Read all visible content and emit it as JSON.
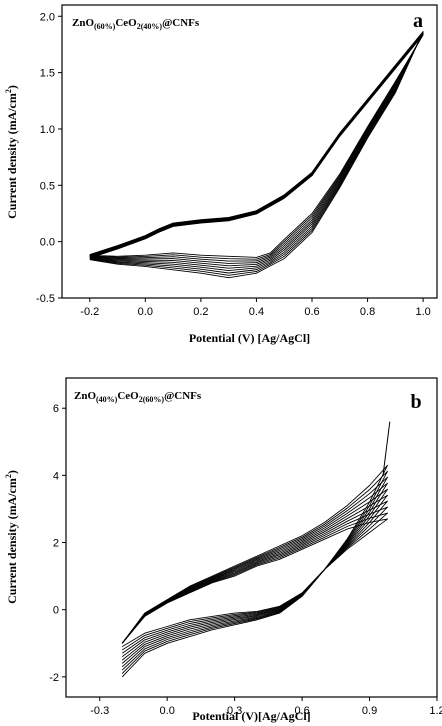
{
  "chart_data": [
    {
      "type": "line",
      "panel_letter": "a",
      "sample_label": {
        "parts": [
          {
            "t": "ZnO",
            "sub": false
          },
          {
            "t": "(60%)",
            "sub": true
          },
          {
            "t": "CeO",
            "sub": false
          },
          {
            "t": "2(40%)",
            "sub": true
          },
          {
            "t": "@CNFs",
            "sub": false
          }
        ]
      },
      "xlabel": "Potential (V) [Ag/AgCl]",
      "ylabel": "Current density (mA/cm",
      "ylabel_sup": "2",
      "ylabel_end": ")",
      "xlim": [
        -0.3,
        1.05
      ],
      "ylim": [
        -0.5,
        2.1
      ],
      "xticks": [
        -0.2,
        0.0,
        0.2,
        0.4,
        0.6,
        0.8,
        1.0
      ],
      "xtick_labels": [
        "-0.2",
        "0.0",
        "0.2",
        "0.4",
        "0.6",
        "0.8",
        "1.0"
      ],
      "yticks": [
        -0.5,
        0.0,
        0.5,
        1.0,
        1.5,
        2.0
      ],
      "ytick_labels": [
        "-0.5",
        "0.0",
        "0.5",
        "1.0",
        "1.5",
        "2.0"
      ],
      "series_count": 10,
      "anodic": [
        [
          -0.2,
          -0.13
        ],
        [
          -0.1,
          -0.05
        ],
        [
          0.0,
          0.04
        ],
        [
          0.05,
          0.1
        ],
        [
          0.1,
          0.15
        ],
        [
          0.2,
          0.18
        ],
        [
          0.3,
          0.2
        ],
        [
          0.4,
          0.26
        ],
        [
          0.5,
          0.4
        ],
        [
          0.6,
          0.6
        ],
        [
          0.7,
          0.95
        ],
        [
          0.8,
          1.25
        ],
        [
          0.9,
          1.55
        ],
        [
          1.0,
          1.85
        ]
      ],
      "cathodic_first": [
        [
          1.0,
          1.85
        ],
        [
          0.9,
          1.42
        ],
        [
          0.8,
          1.02
        ],
        [
          0.7,
          0.6
        ],
        [
          0.6,
          0.25
        ],
        [
          0.5,
          0.02
        ],
        [
          0.45,
          -0.1
        ],
        [
          0.4,
          -0.14
        ],
        [
          0.3,
          -0.13
        ],
        [
          0.2,
          -0.12
        ],
        [
          0.1,
          -0.1
        ],
        [
          0.0,
          -0.12
        ],
        [
          -0.1,
          -0.13
        ],
        [
          -0.2,
          -0.12
        ]
      ],
      "cathodic_last": [
        [
          1.0,
          1.72
        ],
        [
          0.9,
          1.32
        ],
        [
          0.8,
          0.92
        ],
        [
          0.7,
          0.48
        ],
        [
          0.6,
          0.08
        ],
        [
          0.5,
          -0.15
        ],
        [
          0.4,
          -0.28
        ],
        [
          0.3,
          -0.32
        ],
        [
          0.2,
          -0.28
        ],
        [
          0.1,
          -0.25
        ],
        [
          0.0,
          -0.22
        ],
        [
          -0.1,
          -0.2
        ],
        [
          -0.2,
          -0.16
        ]
      ]
    },
    {
      "type": "line",
      "panel_letter": "b",
      "sample_label": {
        "parts": [
          {
            "t": "ZnO",
            "sub": false
          },
          {
            "t": "(40%)",
            "sub": true
          },
          {
            "t": "CeO",
            "sub": false
          },
          {
            "t": "2(60%)",
            "sub": true
          },
          {
            "t": "@CNFs",
            "sub": false
          }
        ]
      },
      "xlabel": "Potential (V)[Ag/AgCl]",
      "ylabel": "Current density (mA/cm",
      "ylabel_sup": "2",
      "ylabel_end": ")",
      "xlim": [
        -0.45,
        1.2
      ],
      "ylim": [
        -2.6,
        6.9
      ],
      "xticks": [
        -0.3,
        0.0,
        0.3,
        0.6,
        0.9,
        1.2
      ],
      "xtick_labels": [
        "-0.3",
        "0.0",
        "0.3",
        "0.6",
        "0.9",
        "1.2"
      ],
      "yticks": [
        -2,
        0,
        2,
        4,
        6
      ],
      "ytick_labels": [
        "-2",
        "0",
        "2",
        "4",
        "6"
      ],
      "series_count": 10,
      "anodic_first": [
        [
          -0.2,
          -1.0
        ],
        [
          -0.1,
          -0.1
        ],
        [
          0.0,
          0.3
        ],
        [
          0.1,
          0.7
        ],
        [
          0.2,
          1.0
        ],
        [
          0.3,
          1.3
        ],
        [
          0.4,
          1.6
        ],
        [
          0.5,
          1.9
        ],
        [
          0.6,
          2.2
        ],
        [
          0.7,
          2.6
        ],
        [
          0.8,
          3.1
        ],
        [
          0.9,
          3.7
        ],
        [
          0.98,
          4.3
        ]
      ],
      "anodic_last": [
        [
          -0.2,
          -1.0
        ],
        [
          -0.1,
          -0.2
        ],
        [
          0.0,
          0.2
        ],
        [
          0.1,
          0.5
        ],
        [
          0.2,
          0.8
        ],
        [
          0.3,
          1.0
        ],
        [
          0.4,
          1.3
        ],
        [
          0.5,
          1.5
        ],
        [
          0.6,
          1.8
        ],
        [
          0.7,
          2.1
        ],
        [
          0.8,
          2.4
        ],
        [
          0.9,
          2.6
        ],
        [
          0.98,
          2.7
        ]
      ],
      "cathodic_first": [
        [
          0.98,
          4.3
        ],
        [
          0.9,
          3.2
        ],
        [
          0.8,
          2.1
        ],
        [
          0.7,
          1.2
        ],
        [
          0.6,
          0.4
        ],
        [
          0.5,
          -0.1
        ],
        [
          0.4,
          -0.3
        ],
        [
          0.3,
          -0.45
        ],
        [
          0.2,
          -0.6
        ],
        [
          0.1,
          -0.8
        ],
        [
          0.0,
          -1.0
        ],
        [
          -0.1,
          -1.3
        ],
        [
          -0.2,
          -2.0
        ]
      ],
      "cathodic_last": [
        [
          0.98,
          2.7
        ],
        [
          0.9,
          2.3
        ],
        [
          0.8,
          1.8
        ],
        [
          0.7,
          1.2
        ],
        [
          0.6,
          0.5
        ],
        [
          0.5,
          0.1
        ],
        [
          0.4,
          -0.05
        ],
        [
          0.3,
          -0.1
        ],
        [
          0.2,
          -0.2
        ],
        [
          0.1,
          -0.3
        ],
        [
          0.0,
          -0.5
        ],
        [
          -0.1,
          -0.7
        ],
        [
          -0.2,
          -1.1
        ]
      ],
      "spike": [
        [
          0.96,
          4.0
        ],
        [
          0.99,
          5.6
        ]
      ]
    }
  ]
}
